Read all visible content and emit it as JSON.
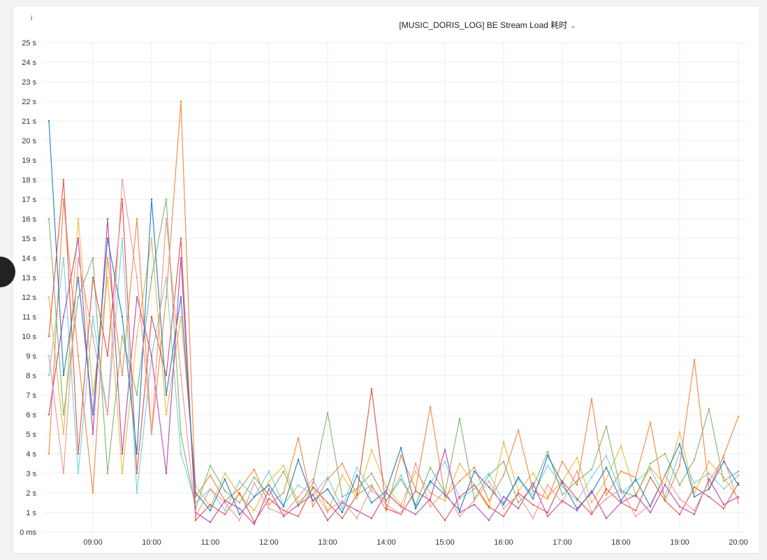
{
  "panel": {
    "title": "[MUSIC_DORIS_LOG] BE Stream Load 耗时",
    "info_icon": "info-icon",
    "menu_icon": "chevron-down-icon"
  },
  "chart_data": {
    "type": "line",
    "title": "[MUSIC_DORIS_LOG] BE Stream Load 耗时",
    "xlabel": "",
    "ylabel": "",
    "yunit": "s",
    "ylim": [
      0,
      25
    ],
    "xlim": [
      "08:09",
      "20:10"
    ],
    "grid": true,
    "legend": "none",
    "yticks": [
      "0 ms",
      "1 s",
      "2 s",
      "3 s",
      "4 s",
      "5 s",
      "6 s",
      "7 s",
      "8 s",
      "9 s",
      "10 s",
      "11 s",
      "12 s",
      "13 s",
      "14 s",
      "15 s",
      "16 s",
      "17 s",
      "18 s",
      "19 s",
      "20 s",
      "21 s",
      "22 s",
      "23 s",
      "24 s",
      "25 s"
    ],
    "xticks": [
      "09:00",
      "10:00",
      "11:00",
      "12:00",
      "13:00",
      "14:00",
      "15:00",
      "16:00",
      "17:00",
      "18:00",
      "19:00",
      "20:00"
    ],
    "x": [
      "08:15",
      "08:30",
      "08:45",
      "09:00",
      "09:15",
      "09:30",
      "09:45",
      "10:00",
      "10:15",
      "10:30",
      "10:45",
      "11:00",
      "11:15",
      "11:30",
      "11:45",
      "12:00",
      "12:15",
      "12:30",
      "12:45",
      "13:00",
      "13:15",
      "13:30",
      "13:45",
      "14:00",
      "14:15",
      "14:30",
      "14:45",
      "15:00",
      "15:15",
      "15:30",
      "15:45",
      "16:00",
      "16:15",
      "16:30",
      "16:45",
      "17:00",
      "17:15",
      "17:30",
      "17:45",
      "18:00",
      "18:15",
      "18:30",
      "18:45",
      "19:00",
      "19:15",
      "19:30",
      "19:45",
      "20:00"
    ],
    "series": [
      {
        "color": "#6ED0E0",
        "values": [
          8,
          14,
          3,
          11,
          6,
          15,
          2,
          9,
          13,
          4,
          1.5,
          2.2,
          1.1,
          2.6,
          1.8,
          3.1,
          1.4,
          2.4,
          1.9,
          2.8,
          1.2,
          3.3,
          2.1,
          1.6,
          2.9,
          1.3,
          2.5,
          3.6,
          1.7,
          2.2,
          3.0,
          1.5,
          2.7,
          1.9,
          3.4,
          2.3,
          1.6,
          2.8,
          3.9,
          2.0,
          2.6,
          3.2,
          1.8,
          4.1,
          2.5,
          3.0,
          2.2,
          2.9
        ]
      },
      {
        "color": "#EAB839",
        "values": [
          12,
          5,
          16,
          7,
          13,
          3,
          10,
          15,
          6,
          11,
          2.4,
          1.3,
          3.0,
          1.9,
          1.1,
          2.6,
          3.4,
          1.5,
          2.2,
          1.0,
          2.9,
          1.7,
          4.2,
          2.3,
          1.4,
          3.1,
          2.0,
          1.6,
          3.5,
          2.4,
          1.2,
          4.6,
          2.1,
          3.0,
          1.8,
          2.6,
          3.8,
          1.5,
          2.7,
          4.4,
          1.9,
          3.3,
          2.4,
          5.1,
          2.0,
          3.6,
          2.8,
          1.7
        ]
      },
      {
        "color": "#EF843C",
        "values": [
          4,
          17,
          9,
          2,
          14,
          8,
          16,
          5,
          12,
          22,
          1.8,
          2.9,
          1.6,
          2.2,
          3.2,
          1.4,
          2.0,
          4.8,
          1.3,
          2.7,
          3.5,
          1.9,
          2.4,
          1.1,
          3.9,
          2.2,
          6.4,
          1.8,
          2.6,
          3.3,
          1.6,
          2.9,
          5.2,
          2.1,
          1.7,
          3.6,
          2.4,
          6.8,
          1.9,
          3.1,
          2.8,
          5.6,
          1.6,
          3.4,
          8.8,
          2.2,
          3.9,
          5.9
        ]
      },
      {
        "color": "#7EB26D",
        "values": [
          16,
          6,
          12,
          14,
          3,
          10,
          7,
          13,
          17,
          5,
          1.2,
          3.4,
          2.1,
          1.5,
          2.8,
          1.9,
          3.1,
          1.3,
          2.5,
          6.1,
          1.8,
          2.2,
          3.0,
          1.6,
          2.7,
          1.4,
          3.3,
          2.0,
          5.8,
          1.7,
          2.9,
          3.6,
          1.5,
          2.3,
          4.1,
          1.9,
          2.6,
          3.2,
          5.4,
          2.1,
          1.8,
          3.5,
          4.0,
          2.4,
          3.7,
          6.3,
          2.6,
          3.1
        ]
      },
      {
        "color": "#E24D42",
        "values": [
          10,
          18,
          4,
          13,
          9,
          17,
          3,
          11,
          8,
          15,
          0.6,
          1.4,
          0.9,
          2.0,
          0.5,
          1.7,
          1.1,
          0.8,
          2.3,
          1.5,
          0.7,
          1.9,
          7.3,
          1.2,
          0.9,
          2.1,
          1.6,
          0.6,
          1.8,
          2.4,
          1.3,
          0.8,
          2.0,
          1.4,
          1.0,
          2.6,
          1.7,
          0.9,
          2.2,
          1.5,
          1.1,
          2.8,
          1.6,
          0.9,
          2.3,
          1.8,
          1.2,
          2.5
        ]
      },
      {
        "color": "#BA43A9",
        "values": [
          6,
          11,
          15,
          5,
          16,
          4,
          12,
          9,
          3,
          14,
          1.0,
          0.5,
          1.6,
          1.2,
          0.4,
          2.2,
          0.8,
          1.4,
          1.9,
          0.6,
          1.5,
          1.1,
          0.7,
          2.0,
          1.3,
          0.9,
          1.7,
          4.2,
          1.0,
          1.4,
          0.6,
          1.8,
          1.2,
          2.5,
          0.8,
          1.6,
          1.1,
          2.1,
          0.7,
          1.5,
          1.9,
          1.0,
          2.4,
          1.3,
          0.9,
          2.7,
          1.4,
          1.8
        ]
      },
      {
        "color": "#1F78C1",
        "values": [
          21,
          8,
          13,
          6,
          15,
          11,
          4,
          17,
          7,
          12,
          2.0,
          1.1,
          2.7,
          0.9,
          1.8,
          2.4,
          1.3,
          3.7,
          1.6,
          2.2,
          1.0,
          2.9,
          1.5,
          2.1,
          4.3,
          1.2,
          2.6,
          1.9,
          1.1,
          3.1,
          2.3,
          1.4,
          2.8,
          1.7,
          3.9,
          2.5,
          1.2,
          2.0,
          3.3,
          1.6,
          2.7,
          1.3,
          2.9,
          4.5,
          1.8,
          2.2,
          3.6,
          2.4
        ]
      },
      {
        "color": "#F29191",
        "values": [
          9,
          3,
          14,
          10,
          6,
          18,
          13,
          5,
          16,
          8,
          0.8,
          2.2,
          1.5,
          0.6,
          2.5,
          1.2,
          0.9,
          1.8,
          2.7,
          1.1,
          1.6,
          0.7,
          2.3,
          1.4,
          0.9,
          3.5,
          1.3,
          2.1,
          0.8,
          1.6,
          2.6,
          1.2,
          1.9,
          0.7,
          2.4,
          1.5,
          3.1,
          1.0,
          1.7,
          2.2,
          0.8,
          1.4,
          2.9,
          1.7,
          1.1,
          2.6,
          3.8,
          1.5
        ]
      }
    ]
  }
}
